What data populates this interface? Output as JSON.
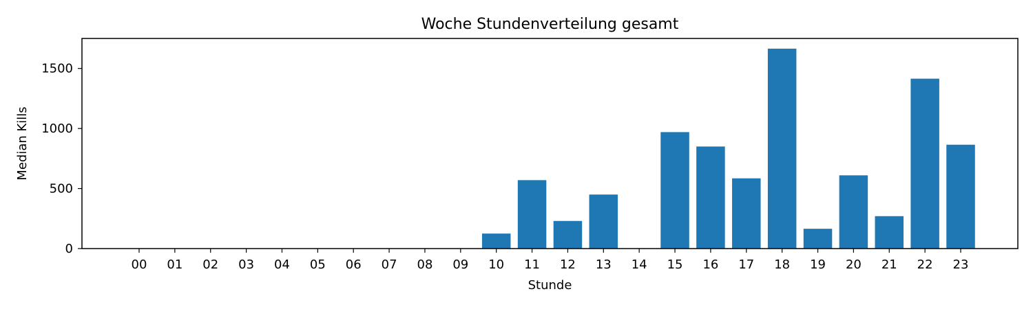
{
  "chart_data": {
    "type": "bar",
    "title": "Woche Stundenverteilung gesamt",
    "xlabel": "Stunde",
    "ylabel": "Median Kills",
    "categories": [
      "00",
      "01",
      "02",
      "03",
      "04",
      "05",
      "06",
      "07",
      "08",
      "09",
      "10",
      "11",
      "12",
      "13",
      "14",
      "15",
      "16",
      "17",
      "18",
      "19",
      "20",
      "21",
      "22",
      "23"
    ],
    "values": [
      0,
      0,
      0,
      0,
      0,
      0,
      0,
      0,
      0,
      0,
      125,
      570,
      230,
      450,
      0,
      970,
      850,
      585,
      1665,
      165,
      610,
      270,
      1415,
      865
    ],
    "ylim": [
      0,
      1750
    ],
    "yticks": [
      0,
      500,
      1000,
      1500
    ],
    "bar_color": "#1f77b4",
    "grid": false,
    "legend": "none"
  }
}
